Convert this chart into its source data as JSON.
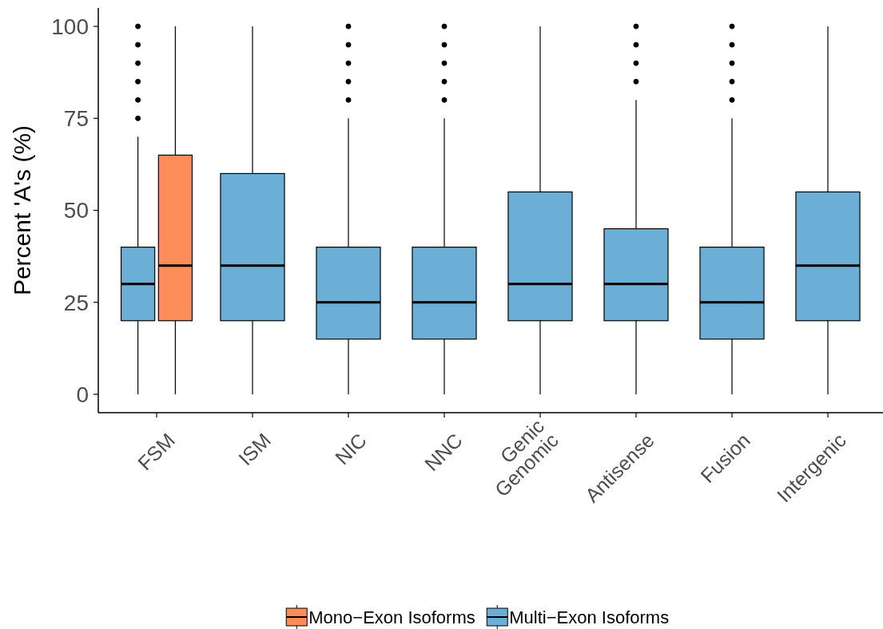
{
  "chart_data": {
    "type": "box",
    "ylabel": "Percent 'A's (%)",
    "categories": [
      "FSM",
      "ISM",
      "NIC",
      "NNC",
      "Genic\nGenomic",
      "Antisense",
      "Fusion",
      "Intergenic"
    ],
    "ylim": [
      -5,
      105
    ],
    "yticks": [
      0,
      25,
      50,
      75,
      100
    ],
    "grid": false,
    "legend": "bottom",
    "series": [
      {
        "name": "Mono−Exon Isoforms",
        "color": "#fc8d59",
        "boxes": [
          {
            "low": 0,
            "q1": 20,
            "median": 35,
            "q3": 65,
            "high": 100
          },
          null,
          null,
          null,
          null,
          null,
          null,
          null
        ]
      },
      {
        "name": "Multi−Exon Isoforms",
        "color": "#6baed6",
        "boxes": [
          {
            "low": 0,
            "q1": 20,
            "median": 30,
            "q3": 40,
            "high": 70,
            "outliers": [
              75,
              80,
              85,
              90,
              95,
              100
            ]
          },
          {
            "low": 0,
            "q1": 20,
            "median": 35,
            "q3": 60,
            "high": 100
          },
          {
            "low": 0,
            "q1": 15,
            "median": 25,
            "q3": 40,
            "high": 75,
            "outliers": [
              80,
              85,
              90,
              95,
              100
            ]
          },
          {
            "low": 0,
            "q1": 15,
            "median": 25,
            "q3": 40,
            "high": 75,
            "outliers": [
              80,
              85,
              90,
              95,
              100
            ]
          },
          {
            "low": 0,
            "q1": 20,
            "median": 30,
            "q3": 55,
            "high": 100
          },
          {
            "low": 0,
            "q1": 20,
            "median": 30,
            "q3": 45,
            "high": 80,
            "outliers": [
              85,
              90,
              95,
              100
            ]
          },
          {
            "low": 0,
            "q1": 15,
            "median": 25,
            "q3": 40,
            "high": 75,
            "outliers": [
              80,
              85,
              90,
              95,
              100
            ]
          },
          {
            "low": 0,
            "q1": 20,
            "median": 35,
            "q3": 55,
            "high": 100
          }
        ]
      }
    ]
  }
}
